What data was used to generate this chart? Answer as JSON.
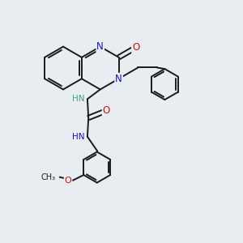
{
  "bg_color": "#e8edf2",
  "bond_color": "#1a1a1a",
  "nitrogen_color": "#1414cc",
  "oxygen_color": "#cc1414",
  "teal_color": "#4a9a8a",
  "figsize": [
    3.0,
    3.0
  ],
  "dpi": 100,
  "xlim": [
    0,
    10
  ],
  "ylim": [
    0,
    10
  ]
}
